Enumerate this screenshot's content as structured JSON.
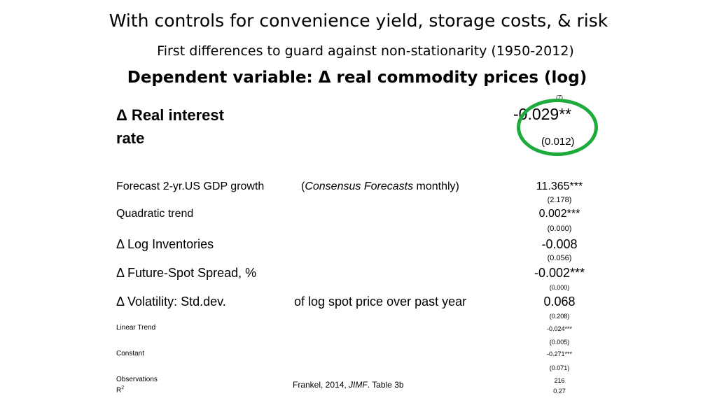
{
  "title": "With controls for convenience yield, storage costs, & risk",
  "subtitle": "First differences to guard against non-stationarity (1950-2012)",
  "dependent_variable": "Dependent variable:  Δ real commodity prices (log)",
  "column_number": "(7)",
  "main_row": {
    "label_line1": "Δ Real interest",
    "label_line2": "rate",
    "coefficient": "-0.029**",
    "std_error": "(0.012)"
  },
  "rows": {
    "gdp": {
      "label": "Forecast 2-yr.US GDP growth",
      "note_open": "(",
      "note_italic": "Consensus Forecasts",
      "note_close": " monthly)",
      "coefficient": "11.365***",
      "std_error": "(2.178)"
    },
    "trend": {
      "label": "Quadratic trend",
      "coefficient": "0.002***",
      "std_error": "(0.000)"
    },
    "inventories": {
      "label": "Δ Log Inventories",
      "coefficient": "-0.008",
      "std_error": "(0.056)"
    },
    "spread": {
      "label": "Δ Future-Spot Spread, %",
      "coefficient": "-0.002***",
      "std_error": "(0.000)"
    },
    "volatility": {
      "label": "Δ Volatility: Std.dev.",
      "note": "of log spot price over past year",
      "coefficient": "0.068",
      "std_error": "(0.208)"
    },
    "linear": {
      "label": "Linear Trend",
      "coefficient": "-0.024***",
      "std_error": "(0.005)"
    },
    "constant": {
      "label": "Constant",
      "coefficient": "-0.271***",
      "std_error": "(0.071)"
    },
    "observations": {
      "label": "Observations",
      "value": "216"
    },
    "r2": {
      "label": "R",
      "sup": "2",
      "value": "0.27"
    }
  },
  "citation": {
    "prefix": "Frankel, 2014, ",
    "italic": "JIMF",
    "suffix": ". Table 3b"
  },
  "colors": {
    "highlight_circle": "#1faa3c"
  }
}
